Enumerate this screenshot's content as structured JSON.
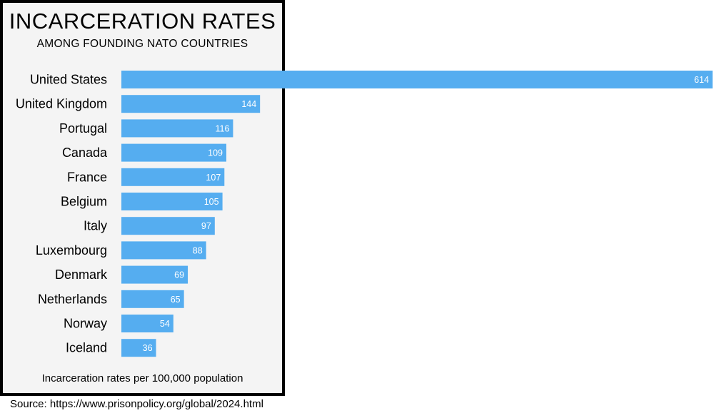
{
  "colors": {
    "bar": "#55adf0",
    "panel_background": "#f4f4f4",
    "panel_border": "#000000",
    "bar_label_text": "#ffffff"
  },
  "chart_data": {
    "type": "bar",
    "orientation": "horizontal",
    "title": "INCARCERATION RATES",
    "subtitle": "AMONG FOUNDING NATO COUNTRIES",
    "xlabel": "Incarceration rates per 100,000 population",
    "ylabel": "",
    "grid": false,
    "legend": "none",
    "categories": [
      "United States",
      "United Kingdom",
      "Portugal",
      "Canada",
      "France",
      "Belgium",
      "Italy",
      "Luxembourg",
      "Denmark",
      "Netherlands",
      "Norway",
      "Iceland"
    ],
    "values": [
      614,
      144,
      116,
      109,
      107,
      105,
      97,
      88,
      69,
      65,
      54,
      36
    ],
    "xlim": [
      0,
      614
    ]
  },
  "source": "Source: https://www.prisonpolicy.org/global/2024.html"
}
